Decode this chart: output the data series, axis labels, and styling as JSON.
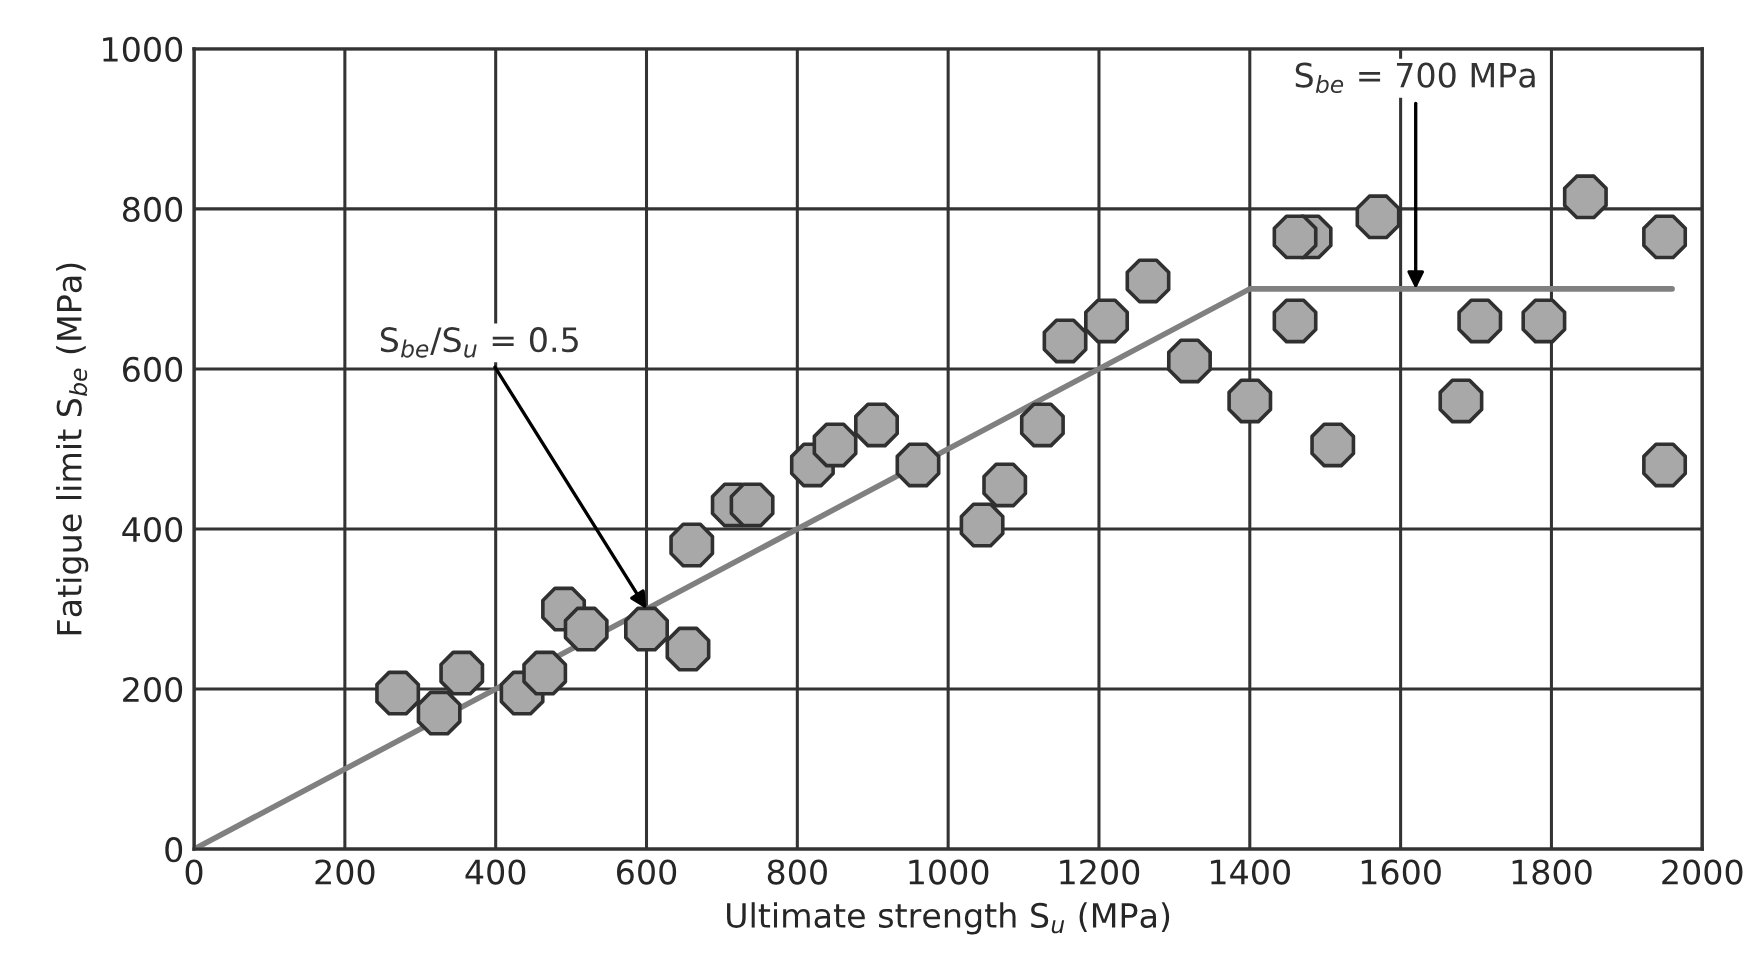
{
  "chart_data": {
    "type": "scatter",
    "xlabel": "Ultimate strength S$_{u}$ (MPa)",
    "ylabel": "Fatigue limit S$_{be}$ (MPa)",
    "xlim": [
      0,
      2000
    ],
    "xticks": [
      0,
      200,
      400,
      600,
      800,
      1000,
      1200,
      1400,
      1600,
      1800,
      2000
    ],
    "ylim": [
      0,
      1000
    ],
    "yticks": [
      0,
      200,
      400,
      600,
      800,
      1000
    ],
    "grid": true,
    "series": [
      {
        "marker": "circle",
        "color": "#a8a8a8",
        "x": [
          270,
          325,
          355,
          435,
          465,
          490,
          520,
          600,
          655,
          660,
          715,
          740,
          820,
          850,
          905,
          960,
          1045,
          1075,
          1125,
          1155,
          1210,
          1265,
          1320,
          1400,
          1460,
          1480,
          1460,
          1510,
          1570,
          1680,
          1705,
          1790,
          1845,
          1950,
          1950
        ],
        "values": [
          195,
          170,
          220,
          195,
          220,
          300,
          275,
          275,
          250,
          380,
          430,
          430,
          480,
          505,
          530,
          480,
          405,
          455,
          530,
          635,
          660,
          710,
          610,
          560,
          660,
          765,
          765,
          505,
          790,
          560,
          660,
          660,
          815,
          765,
          480
        ]
      },
      {
        "type": "line",
        "color": "#808080",
        "x": [
          0,
          1400,
          1960
        ],
        "values": [
          0,
          700,
          700
        ]
      }
    ],
    "annotations": [
      {
        "text": "S$_{be}$/S$_{u}$ = 0.5",
        "x": 600,
        "y": 300
      },
      {
        "text": "S$_{be}$ = 700 MPa",
        "x": 1620,
        "y": 700
      }
    ]
  }
}
